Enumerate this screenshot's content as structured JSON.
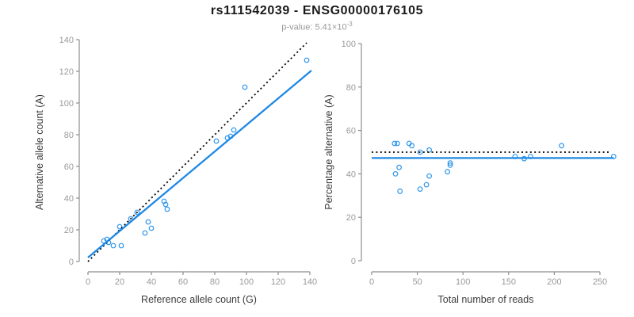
{
  "header": {
    "title": "rs111542039 - ENSG00000176105",
    "subtitle_prefix": "p-value: 5.41×10",
    "subtitle_exponent": "-3"
  },
  "colors": {
    "accent_blue": "#1E88E5",
    "point_blue": "#2E96EC",
    "identity_black": "#000000",
    "axis_gray": "#8E8E8E",
    "tick_label_gray": "#9A9A9A",
    "axis_title_gray": "#3C3C3C",
    "subtitle_gray": "#999999"
  },
  "chart_data": [
    {
      "type": "scatter",
      "name": "allele-count-plot",
      "xlabel": "Reference allele count (G)",
      "ylabel": "Alternative allele count (A)",
      "xlim": [
        0,
        140
      ],
      "ylim": [
        0,
        140
      ],
      "xticks": [
        0,
        20,
        40,
        60,
        80,
        100,
        120,
        140
      ],
      "yticks": [
        0,
        20,
        40,
        60,
        80,
        100,
        120,
        140
      ],
      "grid": false,
      "legend": false,
      "points": [
        [
          10,
          13
        ],
        [
          12,
          14
        ],
        [
          13,
          12
        ],
        [
          16,
          10
        ],
        [
          20,
          22
        ],
        [
          21,
          10
        ],
        [
          27,
          27
        ],
        [
          31,
          31
        ],
        [
          36,
          18
        ],
        [
          38,
          25
        ],
        [
          40,
          21
        ],
        [
          48,
          38
        ],
        [
          49,
          36
        ],
        [
          50,
          33
        ],
        [
          81,
          76
        ],
        [
          88,
          78
        ],
        [
          90,
          79
        ],
        [
          92,
          83
        ],
        [
          99,
          110
        ],
        [
          138,
          127
        ]
      ],
      "lines": [
        {
          "name": "identity-line",
          "style": "dotted",
          "color_key": "identity_black",
          "from": [
            0,
            0
          ],
          "to": [
            138,
            138
          ]
        },
        {
          "name": "regression-line",
          "style": "solid",
          "color_key": "accent_blue",
          "from": [
            0,
            2.5
          ],
          "to": [
            141,
            120.5
          ]
        }
      ]
    },
    {
      "type": "scatter",
      "name": "percentage-plot",
      "xlabel": "Total number of reads",
      "ylabel": "Percentage alternative (A)",
      "xlim": [
        0,
        250
      ],
      "ylim": [
        0,
        100
      ],
      "xticks": [
        0,
        50,
        100,
        150,
        200,
        250
      ],
      "yticks": [
        0,
        20,
        40,
        60,
        80,
        100
      ],
      "grid": false,
      "legend": false,
      "points": [
        [
          25,
          54
        ],
        [
          28,
          54
        ],
        [
          41,
          54
        ],
        [
          44,
          53
        ],
        [
          53,
          50
        ],
        [
          63,
          51
        ],
        [
          26,
          40
        ],
        [
          30,
          43
        ],
        [
          31,
          32
        ],
        [
          53,
          33
        ],
        [
          60,
          35
        ],
        [
          63,
          39
        ],
        [
          83,
          41
        ],
        [
          86,
          44
        ],
        [
          86,
          45
        ],
        [
          157,
          48
        ],
        [
          167,
          47
        ],
        [
          174,
          48
        ],
        [
          208,
          53
        ],
        [
          265,
          48
        ]
      ],
      "lines": [
        {
          "name": "identity-line",
          "style": "dotted",
          "color_key": "identity_black",
          "from": [
            0,
            50
          ],
          "to": [
            260,
            50
          ]
        },
        {
          "name": "regression-line",
          "style": "solid",
          "color_key": "accent_blue",
          "from": [
            0,
            47.3
          ],
          "to": [
            265,
            47.3
          ]
        }
      ]
    }
  ]
}
